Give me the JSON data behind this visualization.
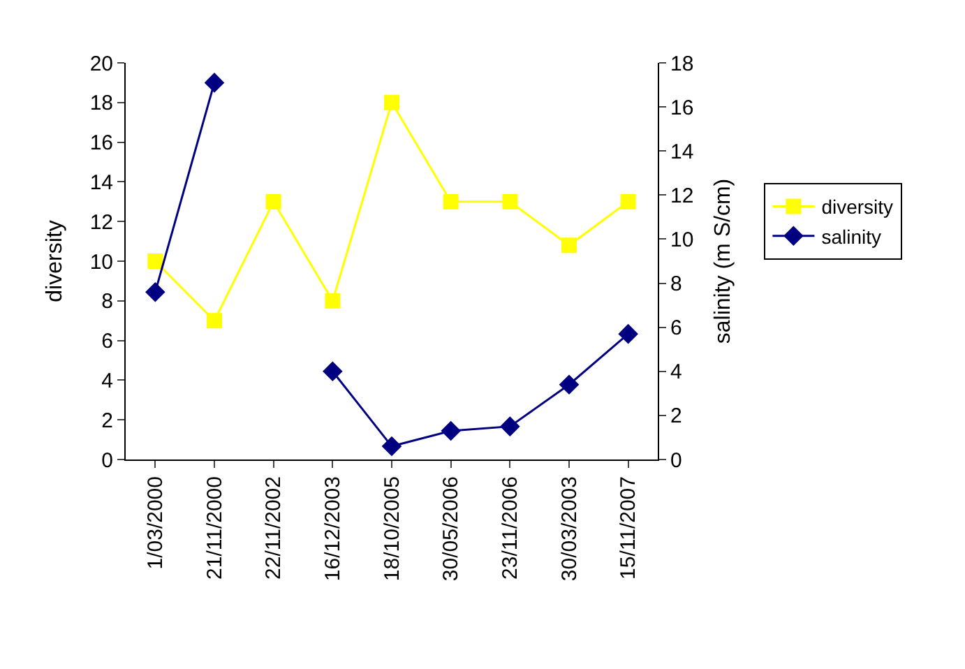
{
  "chart_data": {
    "type": "line",
    "ylabel": "diversity",
    "y2label": "salinity (m S/cm)",
    "categories": [
      "1/03/2000",
      "21/11/2000",
      "22/11/2002",
      "16/12/2003",
      "18/10/2005",
      "30/05/2006",
      "23/11/2006",
      "30/03/2003",
      "15/11/2007"
    ],
    "series": [
      {
        "name": "diversity",
        "color": "#ffff00",
        "marker": "square",
        "values": [
          10,
          7,
          13,
          8,
          18,
          13,
          13,
          10.8,
          13
        ]
      },
      {
        "name": "salinity",
        "color": "#000080",
        "marker": "diamond",
        "axis": "y2",
        "values": [
          7.6,
          17.1,
          null,
          4.0,
          0.6,
          1.3,
          1.5,
          3.4,
          5.7
        ]
      }
    ],
    "ylim": [
      0,
      20
    ],
    "yticks": [
      0,
      2,
      4,
      6,
      8,
      10,
      12,
      14,
      16,
      18,
      20
    ],
    "y2lim": [
      0,
      18
    ],
    "y2ticks": [
      0,
      2,
      4,
      6,
      8,
      10,
      12,
      14,
      16,
      18
    ],
    "legend": "right",
    "line_style": "solid"
  }
}
